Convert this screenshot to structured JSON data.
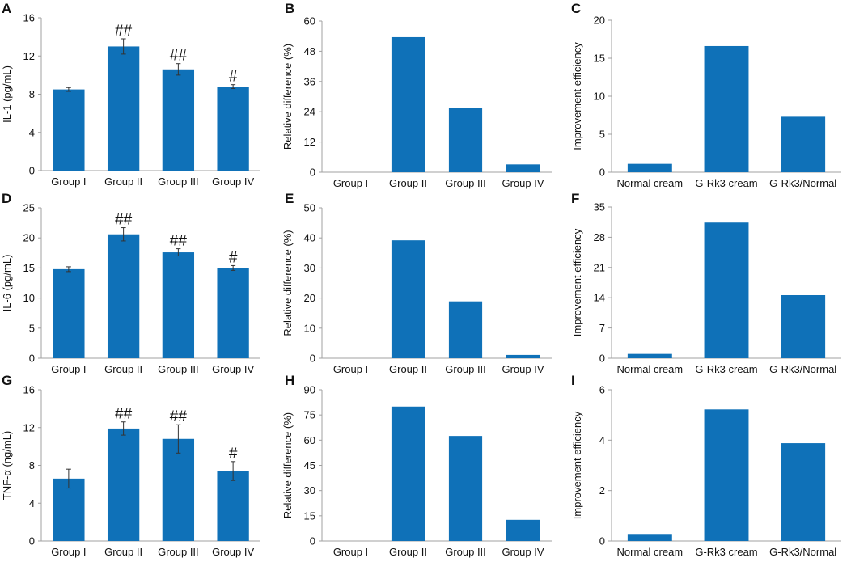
{
  "figure": {
    "bar_color": "#0f71b8",
    "axis_color": "#a0a0a0",
    "text_color": "#111111"
  },
  "chart_data": [
    {
      "panel": "A",
      "type": "bar",
      "categories": [
        "Group I",
        "Group II",
        "Group III",
        "Group IV"
      ],
      "values": [
        8.5,
        13.0,
        10.6,
        8.8
      ],
      "errors": [
        0.2,
        0.8,
        0.6,
        0.2
      ],
      "annotations": [
        "",
        "##",
        "##",
        "#"
      ],
      "ylabel": "IL-1 (pg/mL)",
      "ylim": [
        0,
        16
      ],
      "yticks": [
        0,
        4,
        8,
        12,
        16
      ]
    },
    {
      "panel": "B",
      "type": "bar",
      "categories": [
        "Group I",
        "Group II",
        "Group III",
        "Group IV"
      ],
      "values": [
        0,
        53.6,
        25.6,
        3.1
      ],
      "ylabel": "Relative difference (%)",
      "ylim": [
        0,
        60
      ],
      "yticks": [
        0,
        12,
        24,
        36,
        48,
        60
      ]
    },
    {
      "panel": "C",
      "type": "bar",
      "categories": [
        "Normal cream",
        "G-Rk3 cream",
        "G-Rk3/Normal"
      ],
      "values": [
        1.1,
        16.6,
        7.3
      ],
      "ylabel": "Improvement efficiency",
      "ylim": [
        0,
        20
      ],
      "yticks": [
        0,
        5,
        10,
        15,
        20
      ]
    },
    {
      "panel": "D",
      "type": "bar",
      "categories": [
        "Group I",
        "Group II",
        "Group III",
        "Group IV"
      ],
      "values": [
        14.8,
        20.6,
        17.6,
        15.0
      ],
      "errors": [
        0.4,
        1.1,
        0.6,
        0.4
      ],
      "annotations": [
        "",
        "##",
        "##",
        "#"
      ],
      "ylabel": "IL-6 (pg/mL)",
      "ylim": [
        0,
        25
      ],
      "yticks": [
        0,
        5,
        10,
        15,
        20,
        25
      ]
    },
    {
      "panel": "E",
      "type": "bar",
      "categories": [
        "Group I",
        "Group II",
        "Group III",
        "Group IV"
      ],
      "values": [
        0,
        39.2,
        18.9,
        1.1
      ],
      "ylabel": "Relative difference (%)",
      "ylim": [
        0,
        50
      ],
      "yticks": [
        0,
        10,
        20,
        30,
        40,
        50
      ]
    },
    {
      "panel": "F",
      "type": "bar",
      "categories": [
        "Normal cream",
        "G-Rk3 cream",
        "G-Rk3/Normal"
      ],
      "values": [
        1.0,
        31.4,
        14.6
      ],
      "ylabel": "Improvement efficiency",
      "ylim": [
        0,
        35
      ],
      "yticks": [
        0,
        7,
        14,
        21,
        28,
        35
      ]
    },
    {
      "panel": "G",
      "type": "bar",
      "categories": [
        "Group I",
        "Group II",
        "Group III",
        "Group IV"
      ],
      "values": [
        6.6,
        11.9,
        10.8,
        7.4
      ],
      "errors": [
        1.0,
        0.7,
        1.5,
        1.0
      ],
      "annotations": [
        "",
        "##",
        "##",
        "#"
      ],
      "ylabel": "TNF-α (ng/mL)",
      "ylim": [
        0,
        16
      ],
      "yticks": [
        0,
        4,
        8,
        12,
        16
      ]
    },
    {
      "panel": "H",
      "type": "bar",
      "categories": [
        "Group I",
        "Group II",
        "Group III",
        "Group IV"
      ],
      "values": [
        0,
        80.0,
        62.5,
        12.6
      ],
      "ylabel": "Relative difference (%)",
      "ylim": [
        0,
        90
      ],
      "yticks": [
        0,
        15,
        30,
        45,
        60,
        75,
        90
      ]
    },
    {
      "panel": "I",
      "type": "bar",
      "categories": [
        "Normal cream",
        "G-Rk3 cream",
        "G-Rk3/Normal"
      ],
      "values": [
        0.28,
        5.22,
        3.88
      ],
      "ylabel": "Improvement efficiency",
      "ylim": [
        0,
        6
      ],
      "yticks": [
        0,
        2,
        4,
        6
      ]
    }
  ]
}
